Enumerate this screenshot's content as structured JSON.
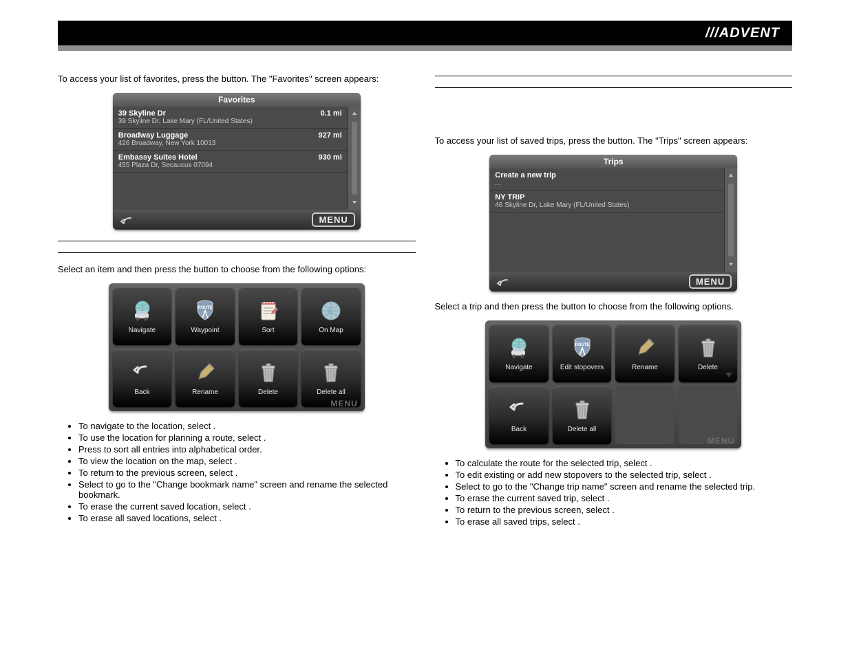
{
  "logo": "///ADVENT",
  "left": {
    "intro_pre": "To access your list of favorites, press the",
    "intro_btn": "",
    "intro_post": "button. The \"Favorites\" screen appears:",
    "fav_screen": {
      "title": "Favorites",
      "rows": [
        {
          "title": "39 Skyline Dr",
          "sub": "39 Skyline Dr, Lake Mary (FL/United States)",
          "dist": "0.1 mi"
        },
        {
          "title": "Broadway Luggage",
          "sub": "426 Broadway, New York 10013",
          "dist": "927 mi"
        },
        {
          "title": "Embassy Suites Hotel",
          "sub": "455 Plaza Dr, Secaucus 07094",
          "dist": "930 mi"
        }
      ],
      "menu": "MENU"
    },
    "mid_pre": "Select an item and then press the",
    "mid_btn": "",
    "mid_post": "button to choose from the following options:",
    "options": [
      {
        "key": "navigate",
        "label": "Navigate"
      },
      {
        "key": "waypoint",
        "label": "Waypoint"
      },
      {
        "key": "sort",
        "label": "Sort"
      },
      {
        "key": "onmap",
        "label": "On Map"
      },
      {
        "key": "back",
        "label": "Back"
      },
      {
        "key": "rename",
        "label": "Rename"
      },
      {
        "key": "delete",
        "label": "Delete"
      },
      {
        "key": "deleteall",
        "label": "Delete all"
      }
    ],
    "options_menu_ghost": "MENU",
    "bullets": [
      {
        "pre": "To navigate to the location, select ",
        "bold": "",
        "post": "."
      },
      {
        "pre": "To use the location for planning a route, select ",
        "bold": "",
        "post": "."
      },
      {
        "pre": "Press ",
        "bold": "",
        "post": " to sort all entries into alphabetical order."
      },
      {
        "pre": "To view the location on the map, select ",
        "bold": "",
        "post": "."
      },
      {
        "pre": "To return to the previous screen, select ",
        "bold": "",
        "post": "."
      },
      {
        "pre": "Select ",
        "bold": "",
        "post": " to go to the \"Change bookmark name\" screen and rename the selected bookmark."
      },
      {
        "pre": "To erase the current saved location, select ",
        "bold": "",
        "post": "."
      },
      {
        "pre": "To erase all saved locations, select ",
        "bold": "",
        "post": "."
      }
    ]
  },
  "right": {
    "intro_pre": "To access your list of saved trips, press the",
    "intro_btn": "",
    "intro_post": "button. The \"Trips\" screen appears:",
    "trips_screen": {
      "title": "Trips",
      "rows": [
        {
          "title": "Create a new trip",
          "sub": "...",
          "dist": ""
        },
        {
          "title": "NY TRIP",
          "sub": "46 Skyline Dr, Lake Mary (FL/United States)",
          "dist": ""
        }
      ],
      "menu": "MENU"
    },
    "mid_pre": "Select a trip and then press the",
    "mid_btn": "",
    "mid_post": "button to choose from the following options.",
    "options": [
      {
        "key": "navigate",
        "label": "Navigate"
      },
      {
        "key": "editstop",
        "label": "Edit stopovers"
      },
      {
        "key": "rename",
        "label": "Rename"
      },
      {
        "key": "delete",
        "label": "Delete"
      },
      {
        "key": "back",
        "label": "Back"
      },
      {
        "key": "deleteall",
        "label": "Delete all"
      },
      {
        "key": "blank",
        "label": ""
      },
      {
        "key": "blank",
        "label": ""
      }
    ],
    "options_menu_ghost": "MENU",
    "bullets": [
      {
        "pre": "To calculate the route for the selected trip, select ",
        "bold": "",
        "post": "."
      },
      {
        "pre": "To edit existing or add new stopovers to the selected trip, select ",
        "bold": "",
        "post": "."
      },
      {
        "pre": "Select ",
        "bold": "",
        "post": " to go to the \"Change trip name\" screen and rename the selected trip."
      },
      {
        "pre": "To erase the current saved trip, select ",
        "bold": "",
        "post": "."
      },
      {
        "pre": "To return to the previous screen, select ",
        "bold": "",
        "post": "."
      },
      {
        "pre": "To erase all saved trips, select ",
        "bold": "",
        "post": "."
      }
    ]
  },
  "icons": {
    "navigate": "car-globe",
    "waypoint": "route-shield",
    "editstop": "route-shield",
    "sort": "notepad",
    "onmap": "globe",
    "back": "back-arrow",
    "rename": "pencil",
    "delete": "trash",
    "deleteall": "trash"
  }
}
